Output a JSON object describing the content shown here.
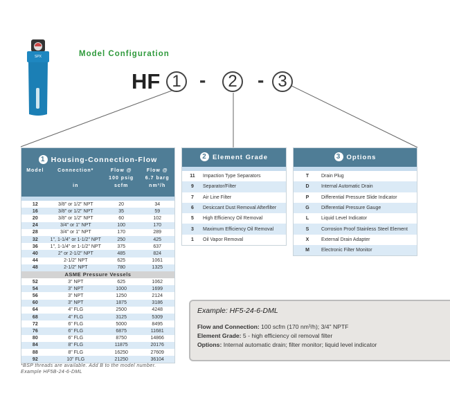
{
  "header": {
    "title": "Model Configuration",
    "prefix": "HF",
    "slots": [
      "1",
      "2",
      "3"
    ],
    "dash": "-"
  },
  "colors": {
    "header_blue": "#4f7d96",
    "row_blue": "#dbeaf6",
    "title_green": "#2f9a3c"
  },
  "product_image": {
    "icon": "filter-housing-image",
    "logo": "SPX"
  },
  "housing": {
    "number": "1",
    "title": "Housing-Connection-Flow",
    "columns": [
      {
        "l1": "Model",
        "l2": "",
        "l3": ""
      },
      {
        "l1": "Connection*",
        "l2": "",
        "l3": "in"
      },
      {
        "l1": "Flow @",
        "l2": "100 psig",
        "l3": "scfm"
      },
      {
        "l1": "Flow @",
        "l2": "6.7 barg",
        "l3": "nm³/h"
      }
    ],
    "rows": [
      [
        "12",
        "3/8\" or 1/2\" NPT",
        "20",
        "34"
      ],
      [
        "16",
        "3/8\" or 1/2\" NPT",
        "35",
        "59"
      ],
      [
        "20",
        "3/8\" or 1/2\" NPT",
        "60",
        "102"
      ],
      [
        "24",
        "3/4\" or 1\" NPT",
        "100",
        "170"
      ],
      [
        "28",
        "3/4\" or 1\" NPT",
        "170",
        "289"
      ],
      [
        "32",
        "1\", 1-1/4\" or 1-1/2\" NPT",
        "250",
        "425"
      ],
      [
        "36",
        "1\", 1-1/4\" or 1-1/2\" NPT",
        "375",
        "637"
      ],
      [
        "40",
        "2\" or 2-1/2\" NPT",
        "485",
        "824"
      ],
      [
        "44",
        "2-1/2\" NPT",
        "625",
        "1061"
      ],
      [
        "48",
        "2-1/2\" NPT",
        "780",
        "1325"
      ]
    ],
    "section": "ASME Pressure Vessels",
    "asme_rows": [
      [
        "52",
        "3\" NPT",
        "625",
        "1062"
      ],
      [
        "54",
        "3\" NPT",
        "1000",
        "1699"
      ],
      [
        "56",
        "3\" NPT",
        "1250",
        "2124"
      ],
      [
        "60",
        "3\" NPT",
        "1875",
        "3186"
      ],
      [
        "64",
        "4\" FLG",
        "2500",
        "4248"
      ],
      [
        "68",
        "4\" FLG",
        "3125",
        "5309"
      ],
      [
        "72",
        "6\" FLG",
        "5000",
        "8495"
      ],
      [
        "76",
        "6\" FLG",
        "6875",
        "11681"
      ],
      [
        "80",
        "6\" FLG",
        "8750",
        "14866"
      ],
      [
        "84",
        "8\" FLG",
        "11875",
        "20176"
      ],
      [
        "88",
        "8\" FLG",
        "16250",
        "27609"
      ],
      [
        "92",
        "10\" FLG",
        "21250",
        "36104"
      ]
    ],
    "footnote": [
      "*BSP threads are available. Add B to the model number.",
      "Example HF5B-24-6-DML"
    ]
  },
  "grade": {
    "number": "2",
    "title": "Element Grade",
    "rows": [
      [
        "11",
        "Impaction Type Separators"
      ],
      [
        "9",
        "Separator/Filter"
      ],
      [
        "7",
        "Air Line Filter"
      ],
      [
        "6",
        "Desiccant Dust Removal Afterfilter"
      ],
      [
        "5",
        "High Efficiency Oil Removal"
      ],
      [
        "3",
        "Maximum Efficiency Oil Removal"
      ],
      [
        "1",
        "Oil Vapor Removal"
      ]
    ]
  },
  "options": {
    "number": "3",
    "title": "Options",
    "rows": [
      [
        "T",
        "Drain Plug"
      ],
      [
        "D",
        "Internal Automatic Drain"
      ],
      [
        "P",
        "Differential Pressure Slide Indicator"
      ],
      [
        "G",
        "Differential Pressure Gauge"
      ],
      [
        "L",
        "Liquid Level Indicator"
      ],
      [
        "S",
        "Corrosion Proof Stainless Steel Element"
      ],
      [
        "X",
        "External Drain Adapter"
      ],
      [
        "M",
        "Electronic Filter Monitor"
      ]
    ]
  },
  "example": {
    "title": "Example: HF5-24-6-DML",
    "lines": [
      {
        "label": "Flow and Connection:",
        "value": " 100 scfm (170 nm³/h); 3/4\" NPTF"
      },
      {
        "label": "Element Grade:",
        "value": " 5 - high efficiency oil removal filter"
      },
      {
        "label": "Options:",
        "value": " Internal automatic drain; filter monitor; liquid level indicator"
      }
    ]
  }
}
